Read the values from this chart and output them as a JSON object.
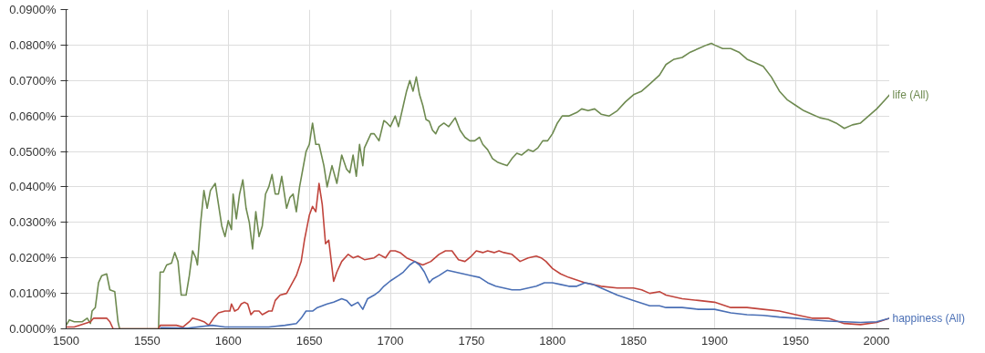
{
  "chart_data": {
    "type": "line",
    "xlim": [
      1500,
      2008
    ],
    "ylim": [
      0,
      0.09
    ],
    "xticks": [
      1500,
      1550,
      1600,
      1650,
      1700,
      1750,
      1800,
      1850,
      1900,
      1950,
      2000
    ],
    "yticks": [
      {
        "value": 0,
        "label": "0.0000%"
      },
      {
        "value": 0.01,
        "label": "0.0100%"
      },
      {
        "value": 0.02,
        "label": "0.0200%"
      },
      {
        "value": 0.03,
        "label": "0.0300%"
      },
      {
        "value": 0.04,
        "label": "0.0400%"
      },
      {
        "value": 0.05,
        "label": "0.0500%"
      },
      {
        "value": 0.06,
        "label": "0.0600%"
      },
      {
        "value": 0.07,
        "label": "0.0700%"
      },
      {
        "value": 0.08,
        "label": "0.0800%"
      },
      {
        "value": 0.09,
        "label": "0.0900%"
      }
    ],
    "grid": true,
    "line_style": "solid",
    "series": [
      {
        "name": "life (All)",
        "color": "#6e8a50",
        "x": [
          1500,
          1502,
          1505,
          1510,
          1513,
          1515,
          1516,
          1518,
          1520,
          1522,
          1525,
          1527,
          1530,
          1532,
          1533,
          1557,
          1558,
          1560,
          1562,
          1565,
          1567,
          1569,
          1571,
          1574,
          1576,
          1578,
          1580,
          1581,
          1583,
          1585,
          1587,
          1589,
          1592,
          1594,
          1596,
          1598,
          1600,
          1602,
          1603,
          1605,
          1607,
          1609,
          1611,
          1613,
          1615,
          1617,
          1619,
          1621,
          1623,
          1625,
          1627,
          1629,
          1631,
          1633,
          1636,
          1638,
          1640,
          1642,
          1644,
          1646,
          1648,
          1650,
          1652,
          1654,
          1656,
          1659,
          1661,
          1664,
          1667,
          1670,
          1673,
          1675,
          1677,
          1679,
          1681,
          1683,
          1684,
          1688,
          1690,
          1693,
          1696,
          1698,
          1700,
          1703,
          1705,
          1708,
          1710,
          1712,
          1714,
          1716,
          1718,
          1720,
          1722,
          1724,
          1726,
          1728,
          1730,
          1733,
          1736,
          1740,
          1743,
          1746,
          1749,
          1752,
          1755,
          1757,
          1760,
          1763,
          1766,
          1769,
          1772,
          1775,
          1778,
          1781,
          1785,
          1788,
          1791,
          1794,
          1797,
          1800,
          1803,
          1806,
          1810,
          1815,
          1818,
          1822,
          1826,
          1830,
          1835,
          1840,
          1845,
          1850,
          1855,
          1860,
          1866,
          1870,
          1875,
          1880,
          1885,
          1890,
          1895,
          1898,
          1900,
          1905,
          1910,
          1915,
          1920,
          1925,
          1930,
          1935,
          1940,
          1945,
          1950,
          1955,
          1960,
          1965,
          1970,
          1975,
          1980,
          1985,
          1990,
          1995,
          2000,
          2005,
          2008
        ],
        "values": [
          0.001,
          0.0025,
          0.002,
          0.002,
          0.003,
          0.0015,
          0.005,
          0.006,
          0.013,
          0.015,
          0.0155,
          0.011,
          0.0105,
          0.002,
          0,
          0,
          0.016,
          0.016,
          0.018,
          0.0185,
          0.0215,
          0.019,
          0.0095,
          0.0095,
          0.015,
          0.022,
          0.02,
          0.018,
          0.03,
          0.039,
          0.034,
          0.039,
          0.041,
          0.035,
          0.029,
          0.026,
          0.0305,
          0.028,
          0.038,
          0.031,
          0.038,
          0.042,
          0.034,
          0.03,
          0.0225,
          0.033,
          0.026,
          0.029,
          0.038,
          0.04,
          0.0435,
          0.038,
          0.038,
          0.043,
          0.034,
          0.037,
          0.038,
          0.033,
          0.04,
          0.045,
          0.05,
          0.052,
          0.058,
          0.052,
          0.052,
          0.046,
          0.04,
          0.046,
          0.041,
          0.049,
          0.045,
          0.044,
          0.049,
          0.043,
          0.052,
          0.046,
          0.051,
          0.055,
          0.055,
          0.053,
          0.0587,
          0.058,
          0.057,
          0.06,
          0.057,
          0.063,
          0.067,
          0.07,
          0.067,
          0.071,
          0.066,
          0.063,
          0.059,
          0.0585,
          0.056,
          0.055,
          0.057,
          0.058,
          0.057,
          0.0595,
          0.056,
          0.054,
          0.053,
          0.053,
          0.054,
          0.052,
          0.0505,
          0.048,
          0.047,
          0.0465,
          0.046,
          0.048,
          0.0495,
          0.049,
          0.0505,
          0.05,
          0.051,
          0.053,
          0.053,
          0.055,
          0.058,
          0.06,
          0.06,
          0.061,
          0.062,
          0.0615,
          0.062,
          0.0605,
          0.06,
          0.0615,
          0.064,
          0.066,
          0.067,
          0.069,
          0.0715,
          0.0745,
          0.076,
          0.0765,
          0.078,
          0.079,
          0.08,
          0.0805,
          0.08,
          0.079,
          0.079,
          0.078,
          0.076,
          0.075,
          0.074,
          0.071,
          0.067,
          0.0645,
          0.063,
          0.0615,
          0.0605,
          0.0595,
          0.059,
          0.058,
          0.0565,
          0.0575,
          0.058,
          0.06,
          0.062,
          0.0645,
          0.066
        ]
      },
      {
        "color": "#c0443c",
        "x": [
          1500,
          1505,
          1515,
          1517,
          1520,
          1525,
          1527,
          1529,
          1557,
          1558,
          1565,
          1568,
          1572,
          1576,
          1578,
          1582,
          1585,
          1588,
          1591,
          1594,
          1598,
          1601,
          1602,
          1604,
          1606,
          1608,
          1610,
          1612,
          1614,
          1616,
          1619,
          1621,
          1625,
          1627,
          1629,
          1632,
          1636,
          1639,
          1642,
          1645,
          1647,
          1650,
          1652,
          1654,
          1656,
          1658,
          1660,
          1662,
          1665,
          1667,
          1670,
          1674,
          1677,
          1680,
          1684,
          1690,
          1693,
          1697,
          1700,
          1703,
          1706,
          1710,
          1715,
          1720,
          1725,
          1730,
          1734,
          1738,
          1742,
          1746,
          1750,
          1753,
          1757,
          1760,
          1764,
          1767,
          1770,
          1775,
          1780,
          1785,
          1790,
          1793,
          1796,
          1800,
          1805,
          1810,
          1820,
          1830,
          1840,
          1850,
          1855,
          1860,
          1866,
          1870,
          1880,
          1890,
          1900,
          1910,
          1920,
          1930,
          1940,
          1950,
          1960,
          1970,
          1980,
          1990,
          2000,
          2008
        ],
        "values": [
          0.0005,
          0.0005,
          0.002,
          0.003,
          0.003,
          0.003,
          0.002,
          0,
          0,
          0.001,
          0.001,
          0.001,
          0.0005,
          0.002,
          0.003,
          0.0025,
          0.002,
          0.001,
          0.003,
          0.0045,
          0.005,
          0.005,
          0.007,
          0.005,
          0.0055,
          0.007,
          0.0075,
          0.007,
          0.004,
          0.005,
          0.005,
          0.004,
          0.005,
          0.005,
          0.008,
          0.0095,
          0.01,
          0.0125,
          0.015,
          0.019,
          0.025,
          0.032,
          0.0345,
          0.033,
          0.041,
          0.035,
          0.024,
          0.025,
          0.0134,
          0.016,
          0.019,
          0.021,
          0.02,
          0.0205,
          0.0195,
          0.02,
          0.021,
          0.02,
          0.022,
          0.022,
          0.0215,
          0.02,
          0.019,
          0.018,
          0.019,
          0.021,
          0.022,
          0.022,
          0.0195,
          0.019,
          0.0205,
          0.022,
          0.0215,
          0.022,
          0.0215,
          0.022,
          0.0215,
          0.021,
          0.019,
          0.02,
          0.0205,
          0.02,
          0.019,
          0.017,
          0.0155,
          0.0145,
          0.013,
          0.012,
          0.0115,
          0.0115,
          0.011,
          0.01,
          0.0105,
          0.0095,
          0.0085,
          0.008,
          0.0075,
          0.006,
          0.006,
          0.0055,
          0.005,
          0.004,
          0.003,
          0.003,
          0.0015,
          0.0012,
          0.0018,
          0.003
        ]
      },
      {
        "name": "happiness (All)",
        "color": "#4a6fb5",
        "x": [
          1558,
          1575,
          1590,
          1598,
          1625,
          1635,
          1642,
          1645,
          1648,
          1652,
          1655,
          1658,
          1661,
          1665,
          1670,
          1673,
          1676,
          1680,
          1683,
          1686,
          1690,
          1693,
          1696,
          1700,
          1705,
          1708,
          1712,
          1715,
          1718,
          1721,
          1724,
          1726,
          1730,
          1735,
          1740,
          1745,
          1750,
          1755,
          1760,
          1765,
          1770,
          1775,
          1780,
          1790,
          1795,
          1800,
          1805,
          1810,
          1815,
          1820,
          1825,
          1830,
          1840,
          1850,
          1860,
          1866,
          1870,
          1880,
          1890,
          1900,
          1910,
          1920,
          1930,
          1940,
          1950,
          1960,
          1970,
          1980,
          1990,
          2000,
          2008
        ],
        "values": [
          0.0003,
          0.0002,
          0.001,
          0.0005,
          0.0005,
          0.001,
          0.0015,
          0.003,
          0.005,
          0.005,
          0.006,
          0.0065,
          0.007,
          0.0075,
          0.0085,
          0.008,
          0.0065,
          0.0075,
          0.0055,
          0.0085,
          0.0095,
          0.0105,
          0.012,
          0.0135,
          0.015,
          0.016,
          0.018,
          0.019,
          0.018,
          0.016,
          0.013,
          0.014,
          0.015,
          0.0165,
          0.016,
          0.0155,
          0.015,
          0.0145,
          0.013,
          0.012,
          0.0115,
          0.011,
          0.011,
          0.012,
          0.013,
          0.013,
          0.0125,
          0.012,
          0.012,
          0.013,
          0.0125,
          0.0115,
          0.0095,
          0.008,
          0.0065,
          0.0065,
          0.006,
          0.006,
          0.0055,
          0.0055,
          0.0045,
          0.004,
          0.0038,
          0.0033,
          0.003,
          0.0025,
          0.0022,
          0.002,
          0.0018,
          0.002,
          0.003
        ]
      }
    ]
  }
}
